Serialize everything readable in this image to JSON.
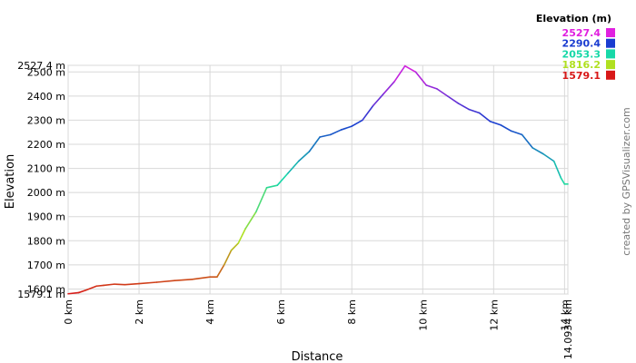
{
  "chart_data": {
    "type": "line",
    "x_label": "Distance",
    "y_label": "Elevation",
    "legend_title": "Elevation (m)",
    "legend": [
      {
        "value": 2527.4,
        "color": "#e020e0"
      },
      {
        "value": 2290.4,
        "color": "#1a3cd0"
      },
      {
        "value": 2053.3,
        "color": "#18d8a8"
      },
      {
        "value": 1816.2,
        "color": "#b0e020"
      },
      {
        "value": 1579.1,
        "color": "#d81818"
      }
    ],
    "watermark": "created by GPSVisualizer.com",
    "xlim": [
      0,
      14.0934
    ],
    "ylim": [
      1579.1,
      2527.4
    ],
    "xticks": [
      {
        "value": 0,
        "label": "0 km"
      },
      {
        "value": 2,
        "label": "2 km"
      },
      {
        "value": 4,
        "label": "4 km"
      },
      {
        "value": 6,
        "label": "6 km"
      },
      {
        "value": 8,
        "label": "8 km"
      },
      {
        "value": 10,
        "label": "10 km"
      },
      {
        "value": 12,
        "label": "12 km"
      },
      {
        "value": 14,
        "label": "14 km"
      },
      {
        "value": 14.0934,
        "label": "14.0934 km"
      }
    ],
    "yticks": [
      {
        "value": 1579.1,
        "label": "1579.1 m"
      },
      {
        "value": 1600,
        "label": "1600 m"
      },
      {
        "value": 1700,
        "label": "1700 m"
      },
      {
        "value": 1800,
        "label": "1800 m"
      },
      {
        "value": 1900,
        "label": "1900 m"
      },
      {
        "value": 2000,
        "label": "2000 m"
      },
      {
        "value": 2100,
        "label": "2100 m"
      },
      {
        "value": 2200,
        "label": "2200 m"
      },
      {
        "value": 2300,
        "label": "2300 m"
      },
      {
        "value": 2400,
        "label": "2400 m"
      },
      {
        "value": 2500,
        "label": "2500 m"
      },
      {
        "value": 2527.4,
        "label": "2527.4 m"
      }
    ],
    "grid": true,
    "x": [
      0,
      0.3,
      0.5,
      0.8,
      1.0,
      1.3,
      1.6,
      2.0,
      2.5,
      3.0,
      3.5,
      4.0,
      4.2,
      4.4,
      4.6,
      4.8,
      5.0,
      5.3,
      5.6,
      5.9,
      6.2,
      6.5,
      6.8,
      7.1,
      7.4,
      7.7,
      8.0,
      8.3,
      8.6,
      8.9,
      9.2,
      9.5,
      9.8,
      10.1,
      10.4,
      10.7,
      11.0,
      11.3,
      11.6,
      11.9,
      12.2,
      12.5,
      12.8,
      13.1,
      13.4,
      13.7,
      13.9,
      14.0,
      14.0934
    ],
    "values": [
      1580,
      1585,
      1595,
      1612,
      1615,
      1620,
      1618,
      1622,
      1628,
      1635,
      1640,
      1650,
      1650,
      1700,
      1760,
      1790,
      1850,
      1920,
      2020,
      2030,
      2080,
      2130,
      2170,
      2230,
      2240,
      2260,
      2275,
      2300,
      2360,
      2410,
      2460,
      2525,
      2500,
      2445,
      2430,
      2400,
      2370,
      2345,
      2330,
      2295,
      2280,
      2255,
      2240,
      2185,
      2160,
      2130,
      2060,
      2035,
      2035
    ]
  }
}
